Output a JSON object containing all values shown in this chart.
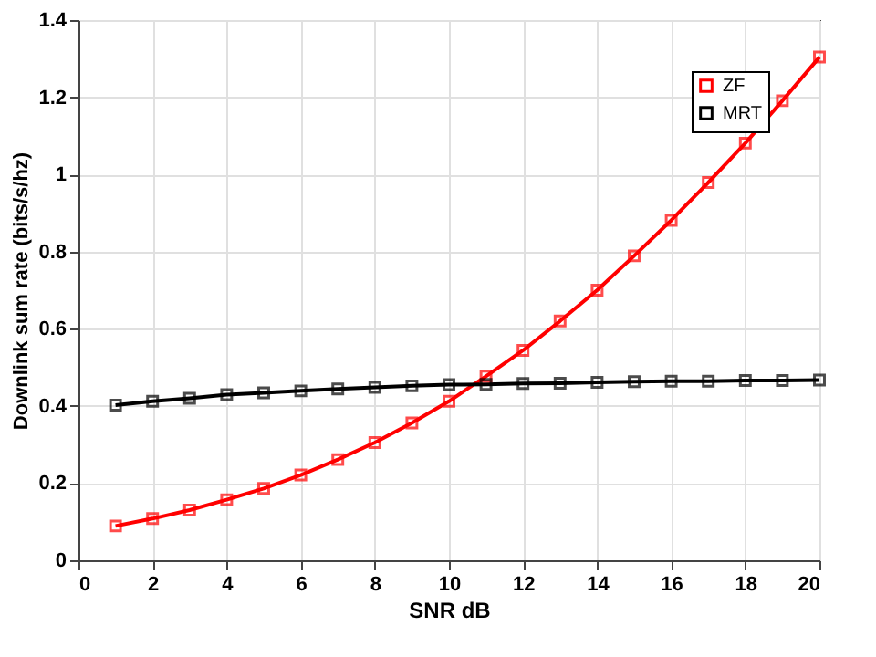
{
  "chart_data": {
    "type": "line",
    "xlabel": "SNR dB",
    "ylabel": "Downlink sum rate (bits/s/hz)",
    "x": [
      1,
      2,
      3,
      4,
      5,
      6,
      7,
      8,
      9,
      10,
      11,
      12,
      13,
      14,
      15,
      16,
      17,
      18,
      19,
      20
    ],
    "series": [
      {
        "name": "ZF",
        "color": "#ff0000",
        "values": [
          0.089,
          0.108,
          0.13,
          0.157,
          0.186,
          0.221,
          0.261,
          0.305,
          0.356,
          0.412,
          0.477,
          0.544,
          0.62,
          0.7,
          0.789,
          0.881,
          0.979,
          1.081,
          1.191,
          1.304
        ]
      },
      {
        "name": "MRT",
        "color": "#000000",
        "values": [
          0.402,
          0.412,
          0.42,
          0.429,
          0.434,
          0.439,
          0.444,
          0.448,
          0.452,
          0.455,
          0.456,
          0.458,
          0.459,
          0.461,
          0.463,
          0.464,
          0.464,
          0.466,
          0.466,
          0.467
        ]
      }
    ],
    "xlim": [
      0,
      20
    ],
    "xticks": [
      0,
      2,
      4,
      6,
      8,
      10,
      12,
      14,
      16,
      18,
      20
    ],
    "ylim": [
      0,
      1.4
    ],
    "yticks": [
      0,
      0.2,
      0.4,
      0.6,
      0.8,
      1,
      1.2,
      1.4
    ],
    "grid": true,
    "legend": "top right",
    "marker": "square",
    "line_style": "solid"
  }
}
